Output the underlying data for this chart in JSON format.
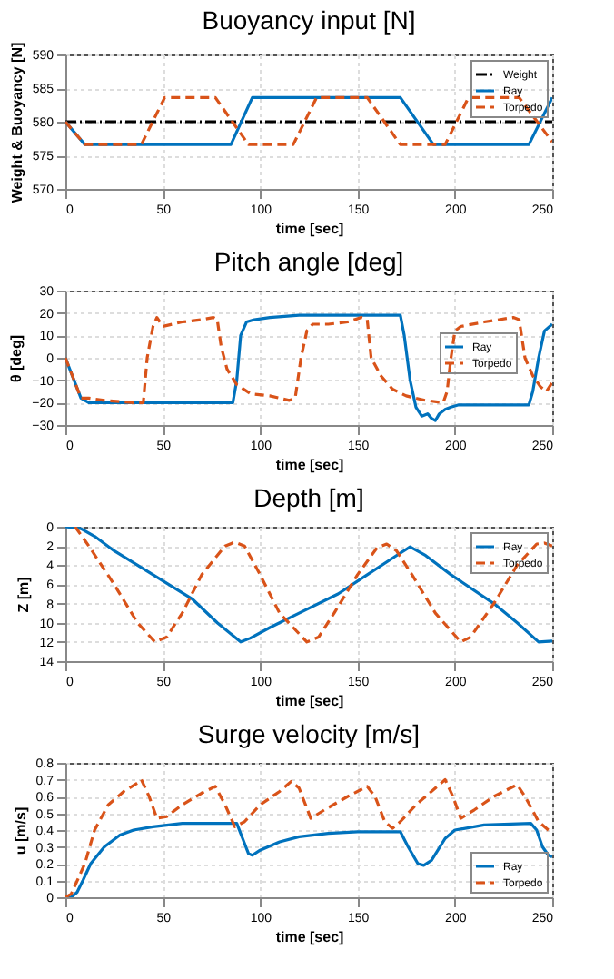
{
  "chart_data": [
    {
      "type": "line",
      "title": "Buoyancy input [N]",
      "xlabel": "time [sec]",
      "ylabel": "Weight & Buoyancy [N]",
      "xlim": [
        0,
        250
      ],
      "xticks": [
        0,
        50,
        100,
        150,
        200,
        250
      ],
      "ylim": [
        570,
        590
      ],
      "yticks": [
        570,
        575,
        580,
        585,
        590
      ],
      "grid": true,
      "legend": "top right",
      "series": [
        {
          "name": "Weight",
          "color": "#000000",
          "line_style": "dashdot",
          "x": [
            0,
            250
          ],
          "values": [
            580,
            580
          ]
        },
        {
          "name": "Ray",
          "color": "#0072bd",
          "line_style": "solid",
          "x": [
            0,
            10,
            85,
            96,
            172,
            189,
            238,
            250
          ],
          "values": [
            580,
            576.6,
            576.6,
            583.6,
            583.6,
            576.6,
            576.6,
            583.6
          ]
        },
        {
          "name": "Torpedo",
          "color": "#d95319",
          "line_style": "dashed",
          "x": [
            0,
            10,
            39,
            51,
            77,
            94,
            117,
            129,
            155,
            172,
            195,
            207,
            233,
            250
          ],
          "values": [
            580,
            576.6,
            576.6,
            583.6,
            583.6,
            576.6,
            576.6,
            583.6,
            583.6,
            576.6,
            576.6,
            583.6,
            583.6,
            577
          ]
        }
      ]
    },
    {
      "type": "line",
      "title": "Pitch angle [deg]",
      "xlabel": "time [sec]",
      "ylabel": "θ [deg]",
      "xlim": [
        0,
        250
      ],
      "xticks": [
        0,
        50,
        100,
        150,
        200,
        250
      ],
      "ylim": [
        -30,
        30
      ],
      "yticks": [
        -30,
        -20,
        -10,
        0,
        10,
        20,
        30
      ],
      "grid": true,
      "legend": "right",
      "series": [
        {
          "name": "Ray",
          "color": "#0072bd",
          "line_style": "solid",
          "x": [
            0,
            8,
            12,
            86,
            88,
            90,
            93,
            97,
            105,
            120,
            172,
            174,
            177,
            180,
            183,
            186,
            188,
            190,
            192,
            195,
            198,
            202,
            210,
            238,
            240,
            243,
            246,
            250
          ],
          "values": [
            0,
            -18,
            -20,
            -20,
            -10,
            10,
            16,
            17,
            18,
            19,
            19,
            10,
            -10,
            -22,
            -26,
            -25,
            -27,
            -28,
            -25,
            -23,
            -22,
            -21,
            -21,
            -21,
            -15,
            0,
            12,
            15
          ]
        },
        {
          "name": "Torpedo",
          "color": "#d95319",
          "line_style": "dashed",
          "x": [
            0,
            8,
            12,
            20,
            35,
            40,
            42,
            45,
            47,
            50,
            55,
            60,
            70,
            76,
            78,
            80,
            83,
            88,
            95,
            105,
            115,
            118,
            121,
            124,
            127,
            135,
            145,
            152,
            155,
            157,
            162,
            168,
            175,
            185,
            194,
            196,
            198,
            200,
            203,
            215,
            230,
            233,
            236,
            240,
            244,
            247,
            250
          ],
          "values": [
            0,
            -18,
            -18,
            -19,
            -20,
            -20,
            0,
            14,
            18,
            14,
            15,
            16,
            17,
            18,
            17,
            5,
            -5,
            -12,
            -16,
            -17,
            -19,
            -18,
            0,
            12,
            15,
            15,
            16,
            18,
            17,
            0,
            -8,
            -14,
            -17,
            -19,
            -20,
            -15,
            0,
            12,
            14,
            16,
            18,
            17,
            0,
            -8,
            -13,
            -15,
            -11
          ]
        }
      ]
    },
    {
      "type": "line",
      "title": "Depth [m]",
      "xlabel": "time [sec]",
      "ylabel": "Z [m]",
      "xlim": [
        0,
        250
      ],
      "xticks": [
        0,
        50,
        100,
        150,
        200,
        250
      ],
      "ylim": [
        14,
        0
      ],
      "yticks": [
        0,
        2,
        4,
        6,
        8,
        10,
        12,
        14
      ],
      "grid": true,
      "legend": "top right",
      "series": [
        {
          "name": "Ray",
          "color": "#0072bd",
          "line_style": "solid",
          "x": [
            0,
            8,
            15,
            25,
            45,
            65,
            78,
            90,
            95,
            105,
            120,
            140,
            155,
            170,
            177,
            185,
            198,
            220,
            232,
            243,
            250
          ],
          "values": [
            0,
            0.2,
            1,
            2.5,
            5,
            7.5,
            10,
            12,
            11.6,
            10.5,
            9,
            7,
            5,
            3,
            2.1,
            3,
            5,
            8,
            10,
            12,
            11.9
          ]
        },
        {
          "name": "Torpedo",
          "color": "#d95319",
          "line_style": "dashed",
          "x": [
            5,
            12,
            25,
            37,
            46,
            52,
            60,
            70,
            82,
            87,
            92,
            100,
            110,
            124,
            130,
            138,
            150,
            160,
            165,
            170,
            178,
            190,
            203,
            208,
            220,
            232,
            242,
            246,
            250
          ],
          "values": [
            0,
            2,
            6,
            10,
            12,
            11.5,
            9,
            5,
            2,
            1.6,
            2,
            5,
            9,
            12,
            11.5,
            9,
            5,
            2.2,
            1.8,
            2.5,
            5,
            9,
            12,
            11.5,
            8,
            4,
            1.8,
            1.7,
            2
          ]
        }
      ]
    },
    {
      "type": "line",
      "title": "Surge velocity [m/s]",
      "xlabel": "time [sec]",
      "ylabel": "u [m/s]",
      "xlim": [
        0,
        250
      ],
      "xticks": [
        0,
        50,
        100,
        150,
        200,
        250
      ],
      "ylim": [
        0,
        0.8
      ],
      "yticks": [
        0,
        0.1,
        0.2,
        0.3,
        0.4,
        0.5,
        0.6,
        0.7,
        0.8
      ],
      "grid": true,
      "legend": "bottom right",
      "series": [
        {
          "name": "Ray",
          "color": "#0072bd",
          "line_style": "solid",
          "x": [
            0,
            3,
            6,
            9,
            13,
            20,
            28,
            35,
            45,
            60,
            88,
            91,
            94,
            96,
            100,
            110,
            120,
            135,
            150,
            172,
            176,
            181,
            184,
            188,
            195,
            200,
            215,
            239,
            242,
            245,
            248,
            250
          ],
          "values": [
            0,
            0,
            0.03,
            0.1,
            0.2,
            0.3,
            0.37,
            0.4,
            0.42,
            0.44,
            0.44,
            0.35,
            0.26,
            0.25,
            0.28,
            0.33,
            0.36,
            0.38,
            0.39,
            0.39,
            0.3,
            0.2,
            0.19,
            0.22,
            0.35,
            0.4,
            0.43,
            0.44,
            0.4,
            0.3,
            0.25,
            0.24
          ]
        },
        {
          "name": "Torpedo",
          "color": "#d95319",
          "line_style": "dashed",
          "x": [
            0,
            3,
            10,
            15,
            22,
            30,
            37,
            39,
            43,
            47,
            52,
            60,
            70,
            77,
            82,
            87,
            92,
            100,
            110,
            116,
            120,
            126,
            133,
            145,
            155,
            159,
            164,
            168,
            172,
            180,
            190,
            195,
            199,
            203,
            210,
            220,
            232,
            236,
            243,
            248,
            250
          ],
          "values": [
            0,
            0.02,
            0.2,
            0.4,
            0.55,
            0.63,
            0.68,
            0.7,
            0.6,
            0.47,
            0.48,
            0.55,
            0.62,
            0.66,
            0.55,
            0.42,
            0.45,
            0.55,
            0.63,
            0.69,
            0.65,
            0.47,
            0.52,
            0.6,
            0.66,
            0.6,
            0.45,
            0.41,
            0.45,
            0.55,
            0.65,
            0.7,
            0.6,
            0.47,
            0.52,
            0.6,
            0.67,
            0.6,
            0.45,
            0.4,
            0.39
          ]
        }
      ]
    }
  ]
}
